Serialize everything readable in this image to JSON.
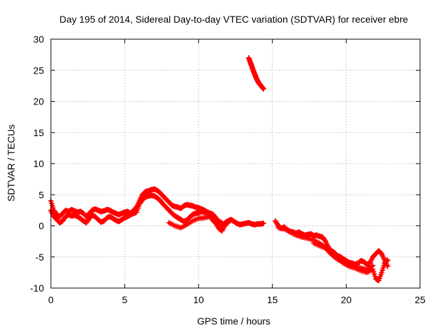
{
  "chart_data": {
    "type": "scatter",
    "title": "Day 195 of 2014, Sidereal Day-to-day VTEC variation (SDTVAR) for receiver ebre",
    "xlabel": "GPS time / hours",
    "ylabel": "SDTVAR / TECUs",
    "xlim": [
      0,
      25
    ],
    "ylim": [
      -10,
      30
    ],
    "x_ticks": [
      0,
      5,
      10,
      15,
      20,
      25
    ],
    "y_ticks": [
      -10,
      -5,
      0,
      5,
      10,
      15,
      20,
      25,
      30
    ],
    "grid": true,
    "marker": "plus",
    "color": "#ff0000",
    "series": [
      {
        "name": "sdtvar-a",
        "x": [
          0.0,
          0.2,
          0.4,
          0.6,
          0.8,
          1.0,
          1.2,
          1.4,
          1.6,
          1.8,
          2.0,
          2.2,
          2.4,
          2.6,
          2.8,
          3.0,
          3.2,
          3.4,
          3.6,
          3.8,
          4.0,
          4.2,
          4.4,
          4.6,
          4.8,
          5.0,
          5.2,
          5.4,
          5.6,
          5.8,
          6.0,
          6.2,
          6.4,
          6.6,
          6.8,
          7.0,
          7.2,
          7.4,
          7.6,
          7.8,
          8.0,
          8.2,
          8.4,
          8.6,
          8.8,
          9.0,
          9.2,
          9.4,
          9.6,
          9.8,
          10.0,
          10.2,
          10.4,
          10.6,
          10.8,
          11.0,
          11.2,
          11.4,
          11.6,
          11.8,
          12.0,
          12.2,
          12.4,
          12.6,
          12.8,
          13.0,
          13.2,
          13.4,
          13.6,
          13.8,
          14.0,
          14.2,
          14.4
        ],
        "y": [
          4.0,
          2.5,
          1.8,
          1.5,
          2.0,
          2.5,
          2.3,
          2.6,
          2.4,
          2.2,
          2.3,
          2.0,
          1.5,
          2.0,
          2.5,
          2.7,
          2.5,
          2.3,
          2.4,
          2.6,
          2.5,
          2.2,
          2.0,
          1.8,
          2.0,
          2.2,
          2.3,
          2.0,
          2.5,
          3.0,
          4.0,
          5.0,
          5.5,
          5.6,
          5.8,
          5.9,
          5.7,
          5.3,
          4.8,
          4.3,
          3.8,
          3.3,
          3.1,
          3.0,
          2.8,
          3.2,
          3.4,
          3.3,
          3.2,
          3.0,
          2.9,
          2.7,
          2.5,
          2.2,
          2.0,
          1.8,
          1.2,
          0.5,
          0.1,
          0.5,
          0.8,
          1.0,
          0.7,
          0.4,
          0.2,
          0.3,
          0.4,
          0.5,
          0.3,
          0.2,
          0.3,
          0.3,
          0.4
        ]
      },
      {
        "name": "sdtvar-b",
        "x": [
          0.0,
          0.2,
          0.4,
          0.6,
          0.8,
          1.0,
          1.2,
          1.4,
          1.6,
          1.8,
          2.0,
          2.2,
          2.4,
          2.6,
          2.8,
          3.0,
          3.2,
          3.4,
          3.6,
          3.8,
          4.0,
          4.2,
          4.4,
          4.6,
          4.8,
          5.0,
          5.2,
          5.4,
          5.6,
          5.8,
          6.0,
          6.2,
          6.4,
          6.6,
          6.8,
          7.0,
          7.2,
          7.4,
          7.6,
          7.8,
          8.0,
          8.2,
          8.4,
          8.6,
          8.8,
          9.0,
          9.2,
          9.4,
          9.6,
          9.8,
          10.0,
          10.2,
          10.4,
          10.6,
          10.8,
          11.0,
          11.2,
          11.4,
          11.6,
          11.8,
          12.0
        ],
        "y": [
          2.5,
          1.5,
          1.0,
          0.5,
          0.8,
          1.5,
          1.8,
          1.6,
          1.7,
          1.5,
          1.2,
          0.8,
          0.5,
          1.2,
          1.7,
          1.5,
          1.0,
          0.6,
          0.8,
          1.3,
          1.5,
          1.2,
          0.9,
          0.7,
          1.0,
          1.3,
          1.5,
          1.8,
          2.0,
          2.2,
          3.5,
          4.2,
          4.6,
          4.8,
          4.9,
          4.8,
          4.5,
          4.1,
          3.5,
          3.0,
          2.5,
          2.0,
          1.6,
          1.3,
          1.0,
          0.7,
          0.9,
          1.4,
          1.8,
          2.0,
          2.1,
          2.3,
          2.2,
          1.9,
          1.5,
          0.8,
          0.3,
          -0.5,
          -0.8,
          0.2,
          0.5
        ]
      },
      {
        "name": "sdtvar-c",
        "x": [
          8.0,
          8.4,
          8.8,
          9.2,
          9.6,
          10.0,
          10.4,
          10.8,
          11.2,
          11.6
        ],
        "y": [
          0.5,
          0.0,
          -0.3,
          0.2,
          0.8,
          1.2,
          1.3,
          1.5,
          1.0,
          0.5
        ]
      },
      {
        "name": "sdtvar-d",
        "x": [
          13.4,
          13.5,
          13.6,
          13.7,
          13.8,
          13.9,
          14.0,
          14.1,
          14.2,
          14.3,
          14.4
        ],
        "y": [
          27.0,
          26.3,
          25.7,
          25.0,
          24.4,
          23.8,
          23.3,
          22.9,
          22.6,
          22.3,
          22.0
        ]
      },
      {
        "name": "sdtvar-e",
        "x": [
          15.2,
          15.4,
          15.6,
          15.8,
          16.0,
          16.2,
          16.4,
          16.6,
          16.8,
          17.0,
          17.2,
          17.4,
          17.6,
          17.8,
          18.0,
          18.2,
          18.4,
          18.6,
          18.8,
          19.0,
          19.2,
          19.4,
          19.6,
          19.8,
          20.0,
          20.2,
          20.4,
          20.6,
          20.8,
          21.0,
          21.2,
          21.4,
          21.6,
          21.8,
          22.0,
          22.2,
          22.4,
          22.6,
          22.8
        ],
        "y": [
          0.8,
          0.0,
          -0.4,
          -0.2,
          -0.6,
          -0.9,
          -1.0,
          -1.2,
          -1.0,
          -1.3,
          -1.5,
          -1.4,
          -1.3,
          -1.6,
          -1.5,
          -1.7,
          -1.8,
          -2.5,
          -3.5,
          -4.0,
          -4.3,
          -4.8,
          -5.0,
          -5.3,
          -5.6,
          -5.9,
          -6.0,
          -6.2,
          -6.0,
          -5.6,
          -5.8,
          -6.2,
          -6.0,
          -5.0,
          -4.5,
          -4.0,
          -4.5,
          -5.5,
          -6.5
        ]
      },
      {
        "name": "sdtvar-f",
        "x": [
          15.4,
          15.8,
          16.2,
          16.6,
          17.0,
          17.4,
          17.8,
          18.2,
          18.6,
          19.0,
          19.4,
          19.8,
          20.2,
          20.6,
          21.0,
          21.4,
          21.8,
          22.0,
          22.2,
          22.4,
          22.6,
          22.8
        ],
        "y": [
          -0.3,
          -0.5,
          -1.0,
          -1.5,
          -1.8,
          -2.0,
          -2.3,
          -2.8,
          -3.5,
          -4.5,
          -5.2,
          -6.0,
          -6.5,
          -6.8,
          -7.2,
          -7.5,
          -7.0,
          -8.5,
          -8.8,
          -7.5,
          -6.0,
          -5.5
        ]
      },
      {
        "name": "sdtvar-g",
        "x": [
          17.8,
          18.2,
          18.6,
          19.0,
          19.4,
          19.8,
          20.2,
          20.6,
          21.0,
          21.4,
          21.8
        ],
        "y": [
          -2.8,
          -3.2,
          -3.6,
          -4.6,
          -5.4,
          -5.8,
          -6.2,
          -6.4,
          -6.8,
          -7.0,
          -6.4
        ]
      }
    ]
  }
}
